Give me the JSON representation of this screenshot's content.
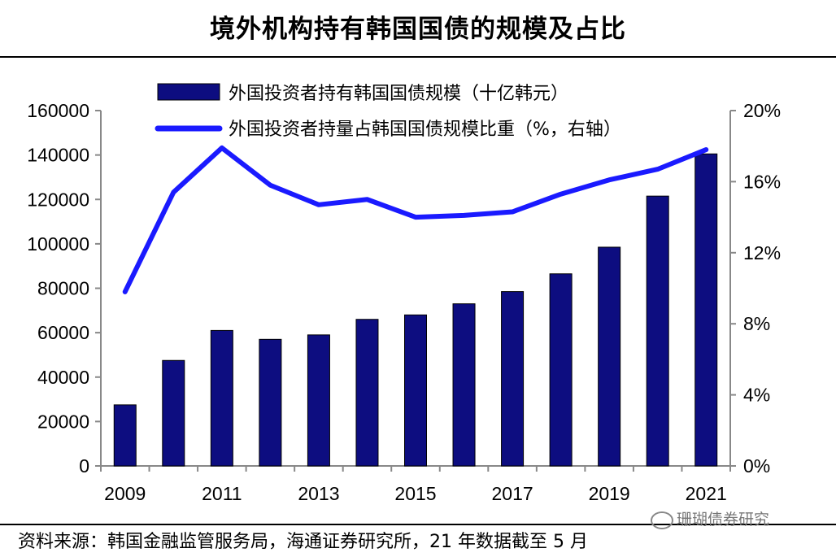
{
  "header": {
    "title": "境外机构持有韩国国债的规模及占比"
  },
  "footer": {
    "source": "资料来源：韩国金融监管服务局，海通证券研究所，21 年数据截至 5 月",
    "watermark": "珊瑚债券研究"
  },
  "chart_data": {
    "type": "bar+line",
    "x": [
      2009,
      2010,
      2011,
      2012,
      2013,
      2014,
      2015,
      2016,
      2017,
      2018,
      2019,
      2020,
      2021
    ],
    "x_tick_labels": [
      "2009",
      "2011",
      "2013",
      "2015",
      "2017",
      "2019",
      "2021"
    ],
    "y_left": {
      "min": 0,
      "max": 160000,
      "ticks": [
        "0",
        "20000",
        "40000",
        "60000",
        "80000",
        "100000",
        "120000",
        "140000",
        "160000"
      ]
    },
    "y_right": {
      "min": 0,
      "max": 20,
      "ticks": [
        "0%",
        "4%",
        "8%",
        "12%",
        "16%",
        "20%"
      ]
    },
    "series": [
      {
        "name": "外国投资者持有韩国国债规模（十亿韩元）",
        "type": "bar",
        "axis": "left",
        "color": "#0d0d80",
        "values": [
          27500,
          47500,
          61000,
          57000,
          59000,
          66000,
          68000,
          73000,
          78500,
          86500,
          98500,
          121500,
          140500
        ]
      },
      {
        "name": "外国投资者持量占韩国国债规模比重（%，右轴）",
        "type": "line",
        "axis": "right",
        "color": "#1a1aff",
        "values": [
          9.8,
          15.4,
          17.9,
          15.8,
          14.7,
          15.0,
          14.0,
          14.1,
          14.3,
          15.3,
          16.1,
          16.7,
          17.8
        ]
      }
    ],
    "legend_position": "top-left",
    "grid": false
  }
}
